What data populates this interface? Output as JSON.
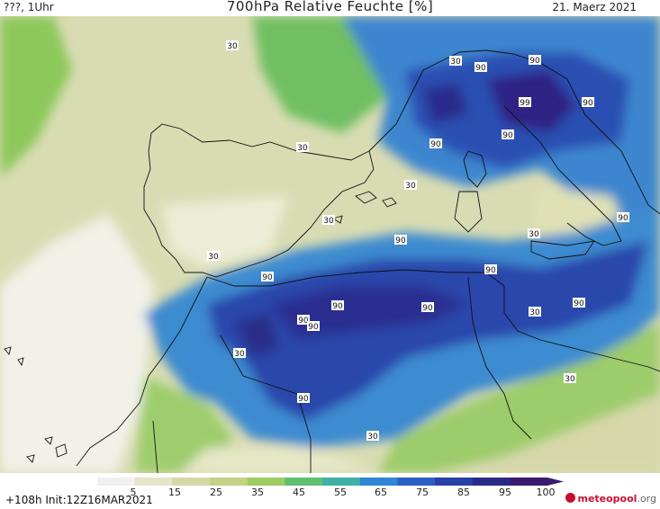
{
  "header": {
    "left": "???, 1Uhr",
    "title": "700hPa Relative Feuchte [%]",
    "date": "21. Maerz 2021"
  },
  "map": {
    "contour_labels": [
      "30",
      "90",
      "99"
    ],
    "colors": {
      "pale": "#e8eccd",
      "olive": "#cfd3a1",
      "yellowgreen": "#bcd06c",
      "green": "#7ec856",
      "teal": "#4cb49c",
      "lightblue": "#3d8fd1",
      "blue": "#2b66c9",
      "darkblue": "#253fad",
      "navy": "#262b8c",
      "purple": "#30207a"
    }
  },
  "colorbar": {
    "ticks": [
      "5",
      "15",
      "25",
      "35",
      "45",
      "55",
      "65",
      "75",
      "85",
      "95",
      "100"
    ],
    "colors": [
      "#f0f0f0",
      "#e6e4c8",
      "#d7d7a5",
      "#c4d285",
      "#9ccc62",
      "#5fbf73",
      "#3fb0a8",
      "#2f86d4",
      "#2a5fc4",
      "#2841a6",
      "#2a2b88",
      "#3a1a70"
    ]
  },
  "footer": {
    "init": "+108h Init:12Z16MAR2021",
    "logo_main": "meteopool",
    "logo_tld": ".org"
  }
}
